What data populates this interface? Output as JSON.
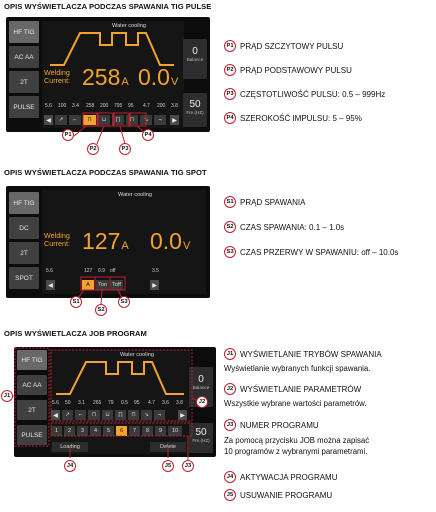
{
  "sections": {
    "pulse": {
      "title": "OPIS WYŚWIETLACZA PODCZAS SPAWANIA TIG PULSE",
      "buttons": [
        "HF TIG",
        "AC AA",
        "2T",
        "PULSE"
      ],
      "water_cooling": "Water cooling",
      "welding_label_1": "Welding",
      "welding_label_2": "Current:",
      "current_value": "258",
      "current_unit": "A",
      "voltage_value": "0.0",
      "voltage_unit": "V",
      "right_top_value": "0",
      "right_top_label": "Balance",
      "right_bottom_value": "50",
      "right_bottom_label": "Fre.(HZ)",
      "param_values": [
        "5.6",
        "100",
        "3.4",
        "258",
        "200",
        "795",
        "95",
        "4.7",
        "200",
        "3.8"
      ],
      "callouts": [
        {
          "tag": "P1",
          "text": "PRĄD SZCZYTOWY PULSU"
        },
        {
          "tag": "P2",
          "text": "PRĄD PODSTAWOWY PULSU"
        },
        {
          "tag": "P3",
          "text": "CZĘSTOTLIWOŚĆ PULSU: 0.5 – 999Hz"
        },
        {
          "tag": "P4",
          "text": "SZEROKOŚĆ IMPULSU: 5 – 95%"
        }
      ]
    },
    "spot": {
      "title": "OPIS WYŚWIETLACZA PODCZAS SPAWANIA TIG SPOT",
      "buttons": [
        "HF TIG",
        "DC",
        "2T",
        "SPOT"
      ],
      "water_cooling": "Water cooling",
      "welding_label_1": "Welding",
      "welding_label_2": "Current:",
      "current_value": "127",
      "current_unit": "A",
      "voltage_value": "0.0",
      "voltage_unit": "V",
      "param_values": [
        "5.6",
        "127",
        "0.9",
        "off",
        "3.5"
      ],
      "slot_labels": [
        "A",
        "Ton",
        "Toff"
      ],
      "callouts": [
        {
          "tag": "S1",
          "text": "PRĄD SPAWANIA"
        },
        {
          "tag": "S2",
          "text": "CZAS SPAWANIA: 0.1 – 1.0s"
        },
        {
          "tag": "S3",
          "text": "CZAS PRZERWY W SPAWANIU: off – 10.0s"
        }
      ]
    },
    "job": {
      "title": "OPIS WYŚWIETLACZA JOB PROGRAM",
      "buttons": [
        "HF TIG",
        "AC AA",
        "2T",
        "PULSE"
      ],
      "water_cooling": "Water cooling",
      "right_top_value": "0",
      "right_top_label": "Balance",
      "right_bottom_value": "50",
      "right_bottom_label": "Fre.(HZ)",
      "param_values": [
        "5.6",
        "50",
        "3.1",
        "265",
        "79",
        "0.5",
        "95",
        "4.7",
        "3.6",
        "3.8"
      ],
      "job_numbers": [
        "1",
        "2",
        "3",
        "4",
        "5",
        "6",
        "7",
        "8",
        "9",
        "10"
      ],
      "selected_job": "6",
      "loading_label": "Loading",
      "delete_label": "Delete",
      "callouts": [
        {
          "tag": "J1",
          "text": "WYŚWIETLANIE TRYBÓW SPAWANIA"
        },
        {
          "tag": "J2",
          "text": "WYŚWIETLANIE PARAMETRÓW"
        },
        {
          "tag": "J3",
          "text": "NUMER PROGRAMU"
        },
        {
          "tag": "J4",
          "text": "AKTYWACJA PROGRAMU"
        },
        {
          "tag": "J5",
          "text": "USUWANIE PROGRAMU"
        }
      ],
      "j1_sub": "Wyświetlanie wybranych funkcji spawania.",
      "j2_sub": "Wszystkie wybrane wartości parametrów.",
      "j3_sub_1": "Za pomocą przycisku JOB można zapisać",
      "j3_sub_2": "10 programów z wybranymi parametrami."
    }
  }
}
